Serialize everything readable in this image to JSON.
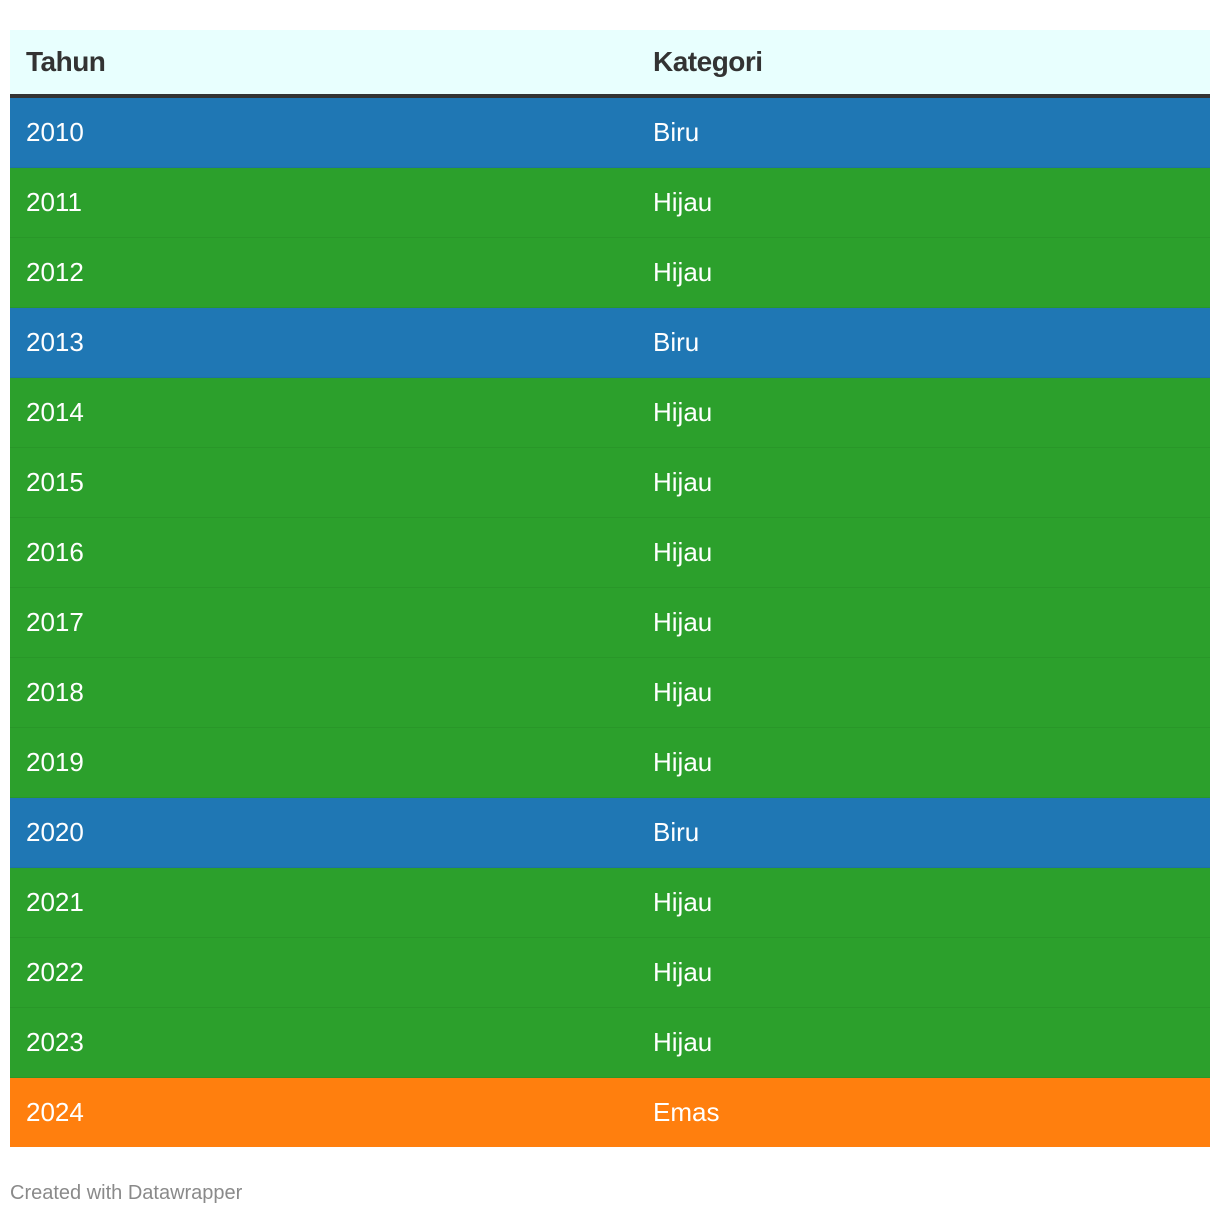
{
  "colors": {
    "Biru": "#1f77b4",
    "Hijau": "#2ca02c",
    "Emas": "#ff7f0e",
    "header_bg": "#e8fffe",
    "header_text": "#333333",
    "cell_text": "#ffffff",
    "footer_text": "#8a8a8a"
  },
  "chart_data": {
    "type": "table",
    "columns": [
      "Tahun",
      "Kategori"
    ],
    "rows": [
      {
        "year": "2010",
        "category": "Biru"
      },
      {
        "year": "2011",
        "category": "Hijau"
      },
      {
        "year": "2012",
        "category": "Hijau"
      },
      {
        "year": "2013",
        "category": "Biru"
      },
      {
        "year": "2014",
        "category": "Hijau"
      },
      {
        "year": "2015",
        "category": "Hijau"
      },
      {
        "year": "2016",
        "category": "Hijau"
      },
      {
        "year": "2017",
        "category": "Hijau"
      },
      {
        "year": "2018",
        "category": "Hijau"
      },
      {
        "year": "2019",
        "category": "Hijau"
      },
      {
        "year": "2020",
        "category": "Biru"
      },
      {
        "year": "2021",
        "category": "Hijau"
      },
      {
        "year": "2022",
        "category": "Hijau"
      },
      {
        "year": "2023",
        "category": "Hijau"
      },
      {
        "year": "2024",
        "category": "Emas"
      }
    ]
  },
  "footer": {
    "credit": "Created with Datawrapper"
  }
}
